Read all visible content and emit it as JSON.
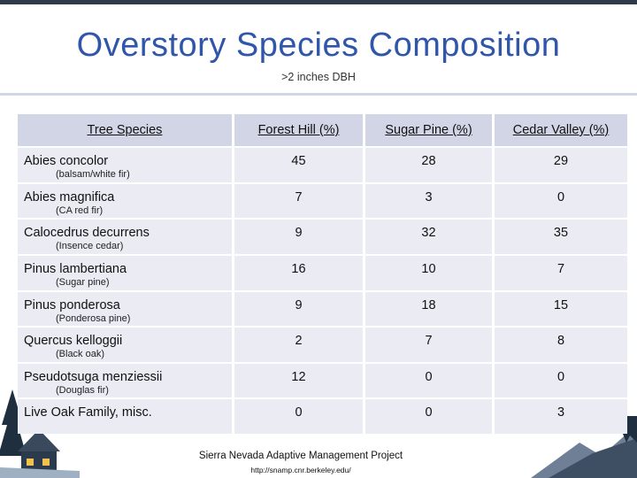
{
  "slide": {
    "title": "Overstory Species Composition",
    "subtitle": ">2 inches DBH"
  },
  "table": {
    "headers": [
      "Tree Species",
      "Forest Hill (%)",
      "Sugar Pine (%)",
      "Cedar Valley (%)"
    ],
    "rows": [
      {
        "scientific": "Abies concolor",
        "common": "(balsam/white fir)",
        "forest_hill": "45",
        "sugar_pine": "28",
        "cedar_valley": "29"
      },
      {
        "scientific": "Abies magnifica",
        "common": "(CA red fir)",
        "forest_hill": "7",
        "sugar_pine": "3",
        "cedar_valley": "0"
      },
      {
        "scientific": "Calocedrus decurrens",
        "common": "(Insence cedar)",
        "forest_hill": "9",
        "sugar_pine": "32",
        "cedar_valley": "35"
      },
      {
        "scientific": "Pinus lambertiana",
        "common": "(Sugar pine)",
        "forest_hill": "16",
        "sugar_pine": "10",
        "cedar_valley": "7"
      },
      {
        "scientific": "Pinus ponderosa",
        "common": "(Ponderosa pine)",
        "forest_hill": "9",
        "sugar_pine": "18",
        "cedar_valley": "15"
      },
      {
        "scientific": "Quercus kelloggii",
        "common": "(Black oak)",
        "forest_hill": "2",
        "sugar_pine": "7",
        "cedar_valley": "8"
      },
      {
        "scientific": "Pseudotsuga menziessii",
        "common": "(Douglas fir)",
        "forest_hill": "12",
        "sugar_pine": "0",
        "cedar_valley": "0"
      },
      {
        "scientific": "Live Oak Family, misc.",
        "common": "",
        "forest_hill": "0",
        "sugar_pine": "0",
        "cedar_valley": "3"
      }
    ]
  },
  "footer": {
    "project": "Sierra Nevada Adaptive Management Project",
    "url": "http://snamp.cnr.berkeley.edu/"
  },
  "colors": {
    "title": "#2f56a8",
    "header_fill": "#d2d5e6",
    "row_fill": "#eaebf3",
    "top_bar": "#2e3a4a"
  }
}
